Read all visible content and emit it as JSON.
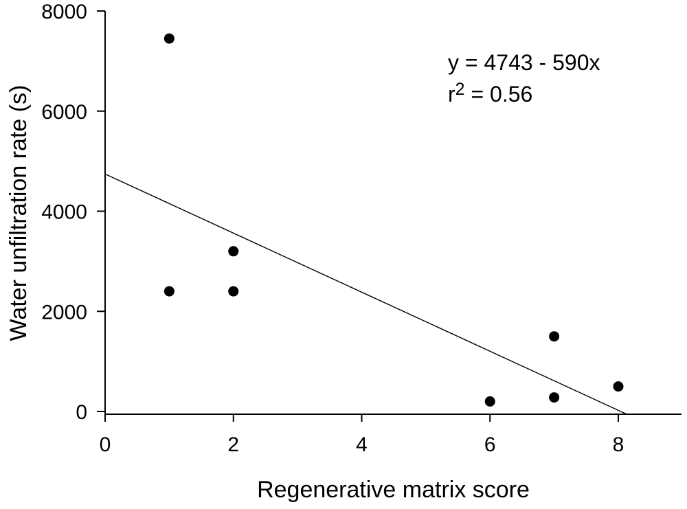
{
  "chart_data": {
    "type": "scatter",
    "title": "",
    "xlabel": "Regenerative matrix score",
    "ylabel": "Water unfiltration rate (s)",
    "xlim": [
      0,
      9
    ],
    "ylim": [
      0,
      8000
    ],
    "x_ticks": [
      0,
      2,
      4,
      6,
      8
    ],
    "y_ticks": [
      0,
      2000,
      4000,
      6000,
      8000
    ],
    "grid": false,
    "legend": false,
    "marker_color": "#000000",
    "axis_color": "#000000",
    "background_color": "#ffffff",
    "points": [
      {
        "x": 1,
        "y": 7450
      },
      {
        "x": 1,
        "y": 2400
      },
      {
        "x": 2,
        "y": 3200
      },
      {
        "x": 2,
        "y": 2400
      },
      {
        "x": 6,
        "y": 200
      },
      {
        "x": 7,
        "y": 1500
      },
      {
        "x": 7,
        "y": 280
      },
      {
        "x": 8,
        "y": 500
      }
    ],
    "trendline": {
      "equation": "y = 4743 - 590x",
      "intercept": 4743,
      "slope": -590,
      "x_start": 0,
      "x_end": 8.14,
      "r_squared": 0.56
    },
    "annotation": {
      "equation_line": "y = 4743 - 590x",
      "r_base": "r",
      "r_sup": "2",
      "r_rest": " = 0.56"
    }
  }
}
